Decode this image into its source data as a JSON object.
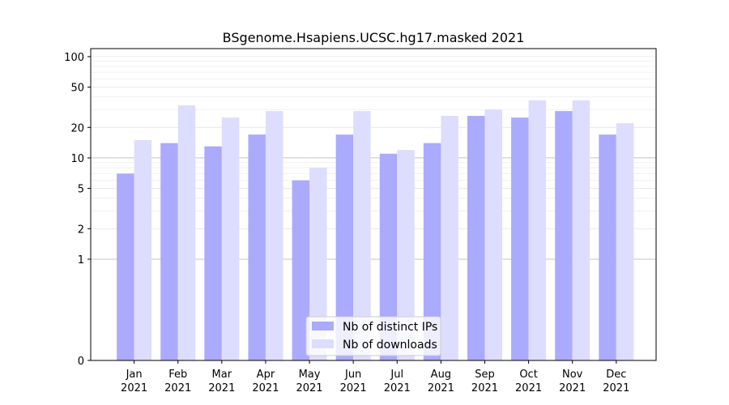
{
  "chart_data": {
    "type": "bar",
    "title": "BSgenome.Hsapiens.UCSC.hg17.masked 2021",
    "xlabel": "",
    "ylabel": "",
    "yscale": "symlog",
    "ylim": [
      0,
      120
    ],
    "yticks": [
      "0",
      "1",
      "2",
      "5",
      "10",
      "20",
      "50",
      "100"
    ],
    "categories": [
      [
        "Jan",
        "2021"
      ],
      [
        "Feb",
        "2021"
      ],
      [
        "Mar",
        "2021"
      ],
      [
        "Apr",
        "2021"
      ],
      [
        "May",
        "2021"
      ],
      [
        "Jun",
        "2021"
      ],
      [
        "Jul",
        "2021"
      ],
      [
        "Aug",
        "2021"
      ],
      [
        "Sep",
        "2021"
      ],
      [
        "Oct",
        "2021"
      ],
      [
        "Nov",
        "2021"
      ],
      [
        "Dec",
        "2021"
      ]
    ],
    "series": [
      {
        "name": "Nb of distinct IPs",
        "color": "#aaaaff",
        "values": [
          7,
          14,
          13,
          17,
          6,
          17,
          11,
          14,
          26,
          25,
          29,
          17
        ]
      },
      {
        "name": "Nb of downloads",
        "color": "#ddddff",
        "values": [
          15,
          33,
          25,
          29,
          8,
          29,
          12,
          26,
          30,
          37,
          37,
          22
        ]
      }
    ],
    "grid": true,
    "legend_position": "bottom-center"
  }
}
